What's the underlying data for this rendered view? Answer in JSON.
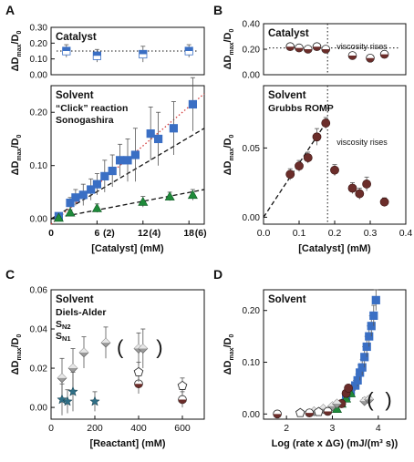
{
  "colors": {
    "click": "#3a6fc4",
    "sonogashira": "#1f8a3a",
    "grubbs": "#6b2d2a",
    "diels_alder": "#9a9a9a",
    "sn2": "#1a1a1a",
    "sn1": "#2f6f86",
    "axis": "#111111",
    "fit": "#111111",
    "click_fit": "#d43a3a"
  },
  "chart_data": [
    {
      "panel": "A",
      "type": "scatter",
      "subplot": "top",
      "text": "Catalyst",
      "xlim": [
        0,
        20
      ],
      "ylim": [
        0,
        0.3
      ],
      "yticks": [
        "0.00",
        "0.10",
        "0.20",
        "0.30"
      ],
      "ticks_y": [
        0,
        0.1,
        0.2,
        0.3
      ],
      "ylabel": "ΔD_max/D_0",
      "reference_line": 0.15,
      "series": [
        {
          "marker": "half-square",
          "x": [
            2,
            6,
            12,
            18
          ],
          "y": [
            0.15,
            0.12,
            0.13,
            0.15
          ],
          "err": [
            0.04,
            0.04,
            0.05,
            0.04
          ]
        }
      ]
    },
    {
      "panel": "A",
      "type": "scatter",
      "subplot": "bottom",
      "text": "Solvent",
      "xlim": [
        0,
        20
      ],
      "ylim": [
        -0.01,
        0.25
      ],
      "xticks": [
        "0",
        "6",
        "12",
        "18"
      ],
      "ticks_x": [
        0,
        6,
        12,
        18
      ],
      "xticks_secondary": [
        "(2)",
        "(4)",
        "(6)"
      ],
      "ticks_x_secondary": [
        6,
        12,
        18
      ],
      "yticks": [
        "0.00",
        "0.10",
        "0.20"
      ],
      "ticks_y": [
        0,
        0.1,
        0.2
      ],
      "xlabel": "[Catalyst] (mM)",
      "ylabel": "ΔD_max/D_0",
      "series": [
        {
          "name": "“Click” reaction",
          "marker": "square",
          "x": [
            1,
            2.5,
            3.2,
            4.2,
            5.2,
            6,
            7,
            8,
            9,
            10,
            11,
            13,
            14,
            16,
            18.5
          ],
          "y": [
            0.005,
            0.03,
            0.04,
            0.045,
            0.055,
            0.065,
            0.08,
            0.09,
            0.11,
            0.11,
            0.12,
            0.16,
            0.15,
            0.17,
            0.215
          ],
          "err": [
            0.005,
            0.01,
            0.015,
            0.02,
            0.02,
            0.02,
            0.03,
            0.03,
            0.03,
            0.04,
            0.05,
            0.05,
            0.05,
            0.05,
            0.05
          ]
        },
        {
          "name": "Sonogashira",
          "marker": "triangle",
          "x": [
            1,
            2.5,
            6,
            12,
            15.5,
            18.5
          ],
          "y": [
            0.002,
            0.012,
            0.02,
            0.032,
            0.042,
            0.045
          ],
          "err": [
            0.003,
            0.005,
            0.008,
            0.01,
            0.008,
            0.01
          ]
        }
      ],
      "fits": [
        {
          "style": "dashed",
          "x": [
            0,
            20
          ],
          "y": [
            0,
            0.17
          ]
        },
        {
          "style": "dashed",
          "x": [
            0,
            20
          ],
          "y": [
            0,
            0.055
          ]
        },
        {
          "style": "dotted-red",
          "x": [
            0,
            20
          ],
          "y": [
            -0.01,
            0.235
          ]
        }
      ]
    },
    {
      "panel": "B",
      "type": "scatter",
      "subplot": "top",
      "text": "Catalyst",
      "xlim": [
        0,
        0.4
      ],
      "ylim": [
        0,
        0.4
      ],
      "yticks": [
        "0.00",
        "0.20",
        "0.40"
      ],
      "ticks_y": [
        0,
        0.2,
        0.4
      ],
      "ylabel": "ΔD_max/D_0",
      "annotation": "viscosity rises",
      "threshold_x": 0.18,
      "reference_line": 0.21,
      "series": [
        {
          "marker": "half-circle",
          "x": [
            0.075,
            0.1,
            0.125,
            0.15,
            0.175,
            0.25,
            0.3,
            0.34
          ],
          "y": [
            0.22,
            0.21,
            0.2,
            0.22,
            0.2,
            0.15,
            0.13,
            0.16
          ],
          "err": [
            0.02,
            0.02,
            0.02,
            0.02,
            0.02,
            0.02,
            0.02,
            0.02
          ]
        }
      ]
    },
    {
      "panel": "B",
      "type": "scatter",
      "subplot": "bottom",
      "text": "Solvent",
      "xlim": [
        0,
        0.4
      ],
      "ylim": [
        -0.005,
        0.095
      ],
      "xticks": [
        "0.0",
        "0.1",
        "0.2",
        "0.3",
        "0.4"
      ],
      "ticks_x": [
        0,
        0.1,
        0.2,
        0.3,
        0.4
      ],
      "yticks": [
        "0.00",
        "0.05"
      ],
      "ticks_y": [
        0,
        0.05
      ],
      "xlabel": "[Catalyst] (mM)",
      "ylabel": "ΔD_max/D_0",
      "annotation": "viscosity rises",
      "threshold_x": 0.18,
      "series": [
        {
          "name": "Grubbs ROMP",
          "marker": "circle",
          "x": [
            0.075,
            0.1,
            0.125,
            0.15,
            0.175,
            0.2,
            0.25,
            0.27,
            0.29,
            0.34
          ],
          "y": [
            0.031,
            0.037,
            0.043,
            0.058,
            0.068,
            0.034,
            0.021,
            0.017,
            0.024,
            0.011
          ],
          "err": [
            0.004,
            0.004,
            0.004,
            0.006,
            0.004,
            0.004,
            0.004,
            0.004,
            0.005,
            0.003
          ]
        }
      ],
      "fits": [
        {
          "style": "dashed",
          "x": [
            0,
            0.18
          ],
          "y": [
            0,
            0.07
          ]
        }
      ]
    },
    {
      "panel": "C",
      "type": "scatter",
      "text": "Solvent",
      "xlim": [
        0,
        700
      ],
      "ylim": [
        -0.006,
        0.06
      ],
      "xticks": [
        "0",
        "200",
        "400",
        "600"
      ],
      "ticks_x": [
        0,
        200,
        400,
        600
      ],
      "yticks": [
        "0.00",
        "0.02",
        "0.04",
        "0.06"
      ],
      "ticks_y": [
        0,
        0.02,
        0.04,
        0.06
      ],
      "xlabel": "[Reactant] (mM)",
      "ylabel": "ΔD_max/D_0",
      "series": [
        {
          "name": "Diels-Alder",
          "marker": "diamond",
          "x": [
            50,
            100,
            150,
            250,
            400,
            420
          ],
          "y": [
            0.015,
            0.02,
            0.028,
            0.033,
            0.03,
            0.03
          ],
          "err": [
            0.01,
            0.01,
            0.008,
            0.008,
            0.008,
            0.01
          ]
        },
        {
          "name": "S_N2",
          "marker": "half-circle",
          "x": [
            400,
            600
          ],
          "y": [
            0.012,
            0.004
          ],
          "err": [
            0.005,
            0.004
          ]
        },
        {
          "name": "S_N1",
          "marker": "star",
          "x": [
            50,
            75,
            100,
            200
          ],
          "y": [
            0.004,
            0.003,
            0.008,
            0.003
          ],
          "err": [
            0.008,
            0.006,
            0.01,
            0.005
          ]
        },
        {
          "name": "",
          "marker": "open-pentagon",
          "x": [
            400,
            600
          ],
          "y": [
            0.018,
            0.011
          ],
          "err": [
            0.005,
            0.004
          ]
        }
      ],
      "bracket_x": [
        300,
        480
      ]
    },
    {
      "panel": "D",
      "type": "scatter",
      "text": "Solvent",
      "xlim": [
        1.5,
        4.6
      ],
      "ylim": [
        -0.01,
        0.24
      ],
      "xticks": [
        "2",
        "3",
        "4"
      ],
      "ticks_x": [
        2,
        3,
        4
      ],
      "yticks": [
        "0.00",
        "0.10",
        "0.20"
      ],
      "ticks_y": [
        0,
        0.1,
        0.2
      ],
      "xlabel": "Log (rate x ΔG) (mJ/(m³ s))",
      "ylabel": "ΔD_max/D_0",
      "series": [
        {
          "name": "“Click” reaction",
          "marker": "square",
          "x": [
            3.3,
            3.4,
            3.5,
            3.55,
            3.6,
            3.65,
            3.7,
            3.75,
            3.8,
            3.85,
            3.9,
            3.95
          ],
          "y": [
            0.035,
            0.045,
            0.055,
            0.065,
            0.08,
            0.09,
            0.11,
            0.13,
            0.15,
            0.17,
            0.19,
            0.22
          ],
          "err": [
            0.01,
            0.01,
            0.01,
            0.012,
            0.015,
            0.015,
            0.02,
            0.02,
            0.02,
            0.02,
            0.02,
            0.02
          ]
        },
        {
          "name": "Sonogashira",
          "marker": "triangle",
          "x": [
            3.1,
            3.2,
            3.3,
            3.4
          ],
          "y": [
            0.01,
            0.02,
            0.03,
            0.04
          ],
          "err": [
            0.005,
            0.005,
            0.005,
            0.006
          ]
        },
        {
          "name": "Grubbs ROMP",
          "marker": "circle",
          "x": [
            3.2,
            3.3,
            3.35
          ],
          "y": [
            0.02,
            0.04,
            0.05
          ],
          "err": [
            0.005,
            0.005,
            0.006
          ]
        },
        {
          "name": "Diels-Alder",
          "marker": "diamond",
          "x": [
            2.6,
            2.8,
            3.0,
            3.1,
            3.7,
            3.8
          ],
          "y": [
            0.005,
            0.01,
            0.015,
            0.02,
            0.025,
            0.028
          ],
          "err": [
            0.004,
            0.004,
            0.005,
            0.005,
            0.006,
            0.006
          ]
        },
        {
          "name": "S_N2",
          "marker": "half-circle",
          "x": [
            1.8,
            2.5,
            2.9
          ],
          "y": [
            0.0,
            0.002,
            0.005
          ],
          "err": [
            0.002,
            0.002,
            0.003
          ]
        },
        {
          "name": "",
          "marker": "open-pentagon",
          "x": [
            2.3,
            2.7
          ],
          "y": [
            0.002,
            0.004
          ],
          "err": [
            0.002,
            0.002
          ]
        }
      ],
      "bracket_x": [
        3.75,
        4.15
      ]
    }
  ],
  "panel_letters": [
    "A",
    "B",
    "C",
    "D"
  ],
  "annotations": {
    "viscosity_top": "viscosity rises",
    "viscosity_bottom": "viscosity rises"
  }
}
